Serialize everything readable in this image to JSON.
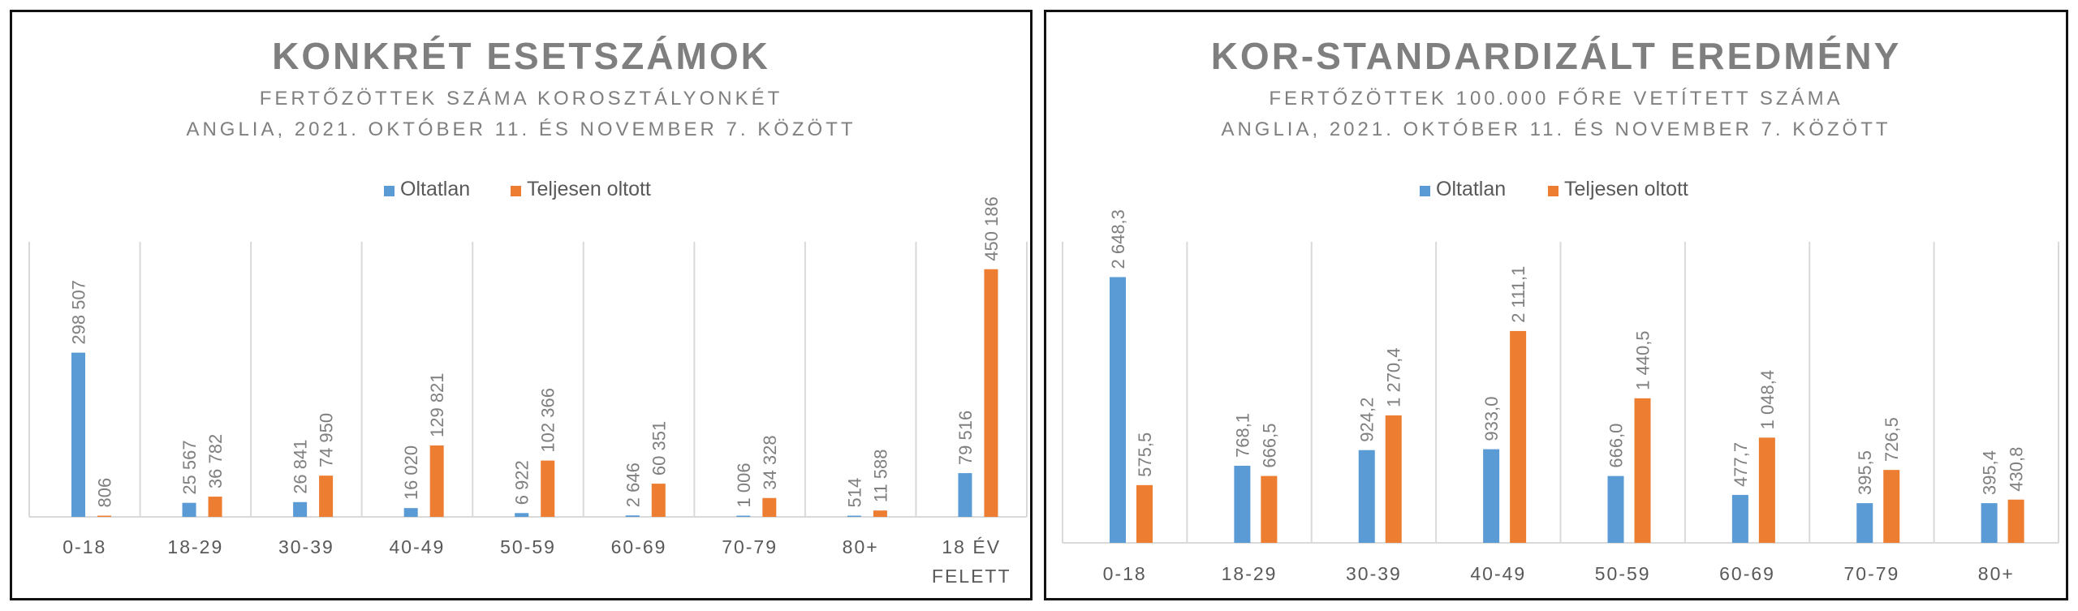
{
  "colors": {
    "unvaccinated": "#5b9bd5",
    "vaccinated": "#ed7d31"
  },
  "chart_data": [
    {
      "type": "bar",
      "title": "KONKRÉT ESETSZÁMOK",
      "subtitle_lines": [
        "FERTŐZÖTTEK SZÁMA KOROSZTÁLYONKÉT",
        "ANGLIA, 2021. OKTÓBER 11. ÉS NOVEMBER 7. KÖZÖTT"
      ],
      "legend_position": "top-center",
      "grid": "vertical category separators",
      "categories": [
        "0-18",
        "18-29",
        "30-39",
        "40-49",
        "50-59",
        "60-69",
        "70-79",
        "80+",
        "18 ÉV FELETT"
      ],
      "category_lines": [
        [
          "0-18"
        ],
        [
          "18-29"
        ],
        [
          "30-39"
        ],
        [
          "40-49"
        ],
        [
          "50-59"
        ],
        [
          "60-69"
        ],
        [
          "70-79"
        ],
        [
          "80+"
        ],
        [
          "18 ÉV",
          "FELETT"
        ]
      ],
      "ylim": [
        0,
        500000
      ],
      "series": [
        {
          "name": "Oltatlan",
          "values": [
            298507,
            25567,
            26841,
            16020,
            6922,
            2646,
            1006,
            514,
            79516
          ],
          "labels": [
            "298 507",
            "25 567",
            "26 841",
            "16 020",
            "6 922",
            "2 646",
            "1 006",
            "514",
            "79 516"
          ]
        },
        {
          "name": "Teljesen oltott",
          "values": [
            806,
            36782,
            74950,
            129821,
            102366,
            60351,
            34328,
            11588,
            450186
          ],
          "labels": [
            "806",
            "36 782",
            "74 950",
            "129 821",
            "102 366",
            "60 351",
            "34 328",
            "11 588",
            "450 186"
          ]
        }
      ]
    },
    {
      "type": "bar",
      "title": "KOR-STANDARDIZÁLT EREDMÉNY",
      "subtitle_lines": [
        "FERTŐZÖTTEK 100.000 FŐRE VETÍTETT SZÁMA",
        "ANGLIA, 2021. OKTÓBER 11. ÉS NOVEMBER 7. KÖZÖTT"
      ],
      "legend_position": "top-center",
      "grid": "vertical category separators",
      "categories": [
        "0-18",
        "18-29",
        "30-39",
        "40-49",
        "50-59",
        "60-69",
        "70-79",
        "80+"
      ],
      "category_lines": [
        [
          "0-18"
        ],
        [
          "18-29"
        ],
        [
          "30-39"
        ],
        [
          "40-49"
        ],
        [
          "50-59"
        ],
        [
          "60-69"
        ],
        [
          "70-79"
        ],
        [
          "80+"
        ]
      ],
      "ylim": [
        0,
        3000
      ],
      "series": [
        {
          "name": "Oltatlan",
          "values": [
            2648.3,
            768.1,
            924.2,
            933.0,
            666.0,
            477.7,
            395.5,
            395.4
          ],
          "labels": [
            "2 648,3",
            "768,1",
            "924,2",
            "933,0",
            "666,0",
            "477,7",
            "395,5",
            "395,4"
          ]
        },
        {
          "name": "Teljesen oltott",
          "values": [
            575.5,
            666.5,
            1270.4,
            2111.1,
            1440.5,
            1048.4,
            726.5,
            430.8
          ],
          "labels": [
            "575,5",
            "666,5",
            "1 270,4",
            "2 111,1",
            "1 440,5",
            "1 048,4",
            "726,5",
            "430,8"
          ]
        }
      ]
    }
  ]
}
